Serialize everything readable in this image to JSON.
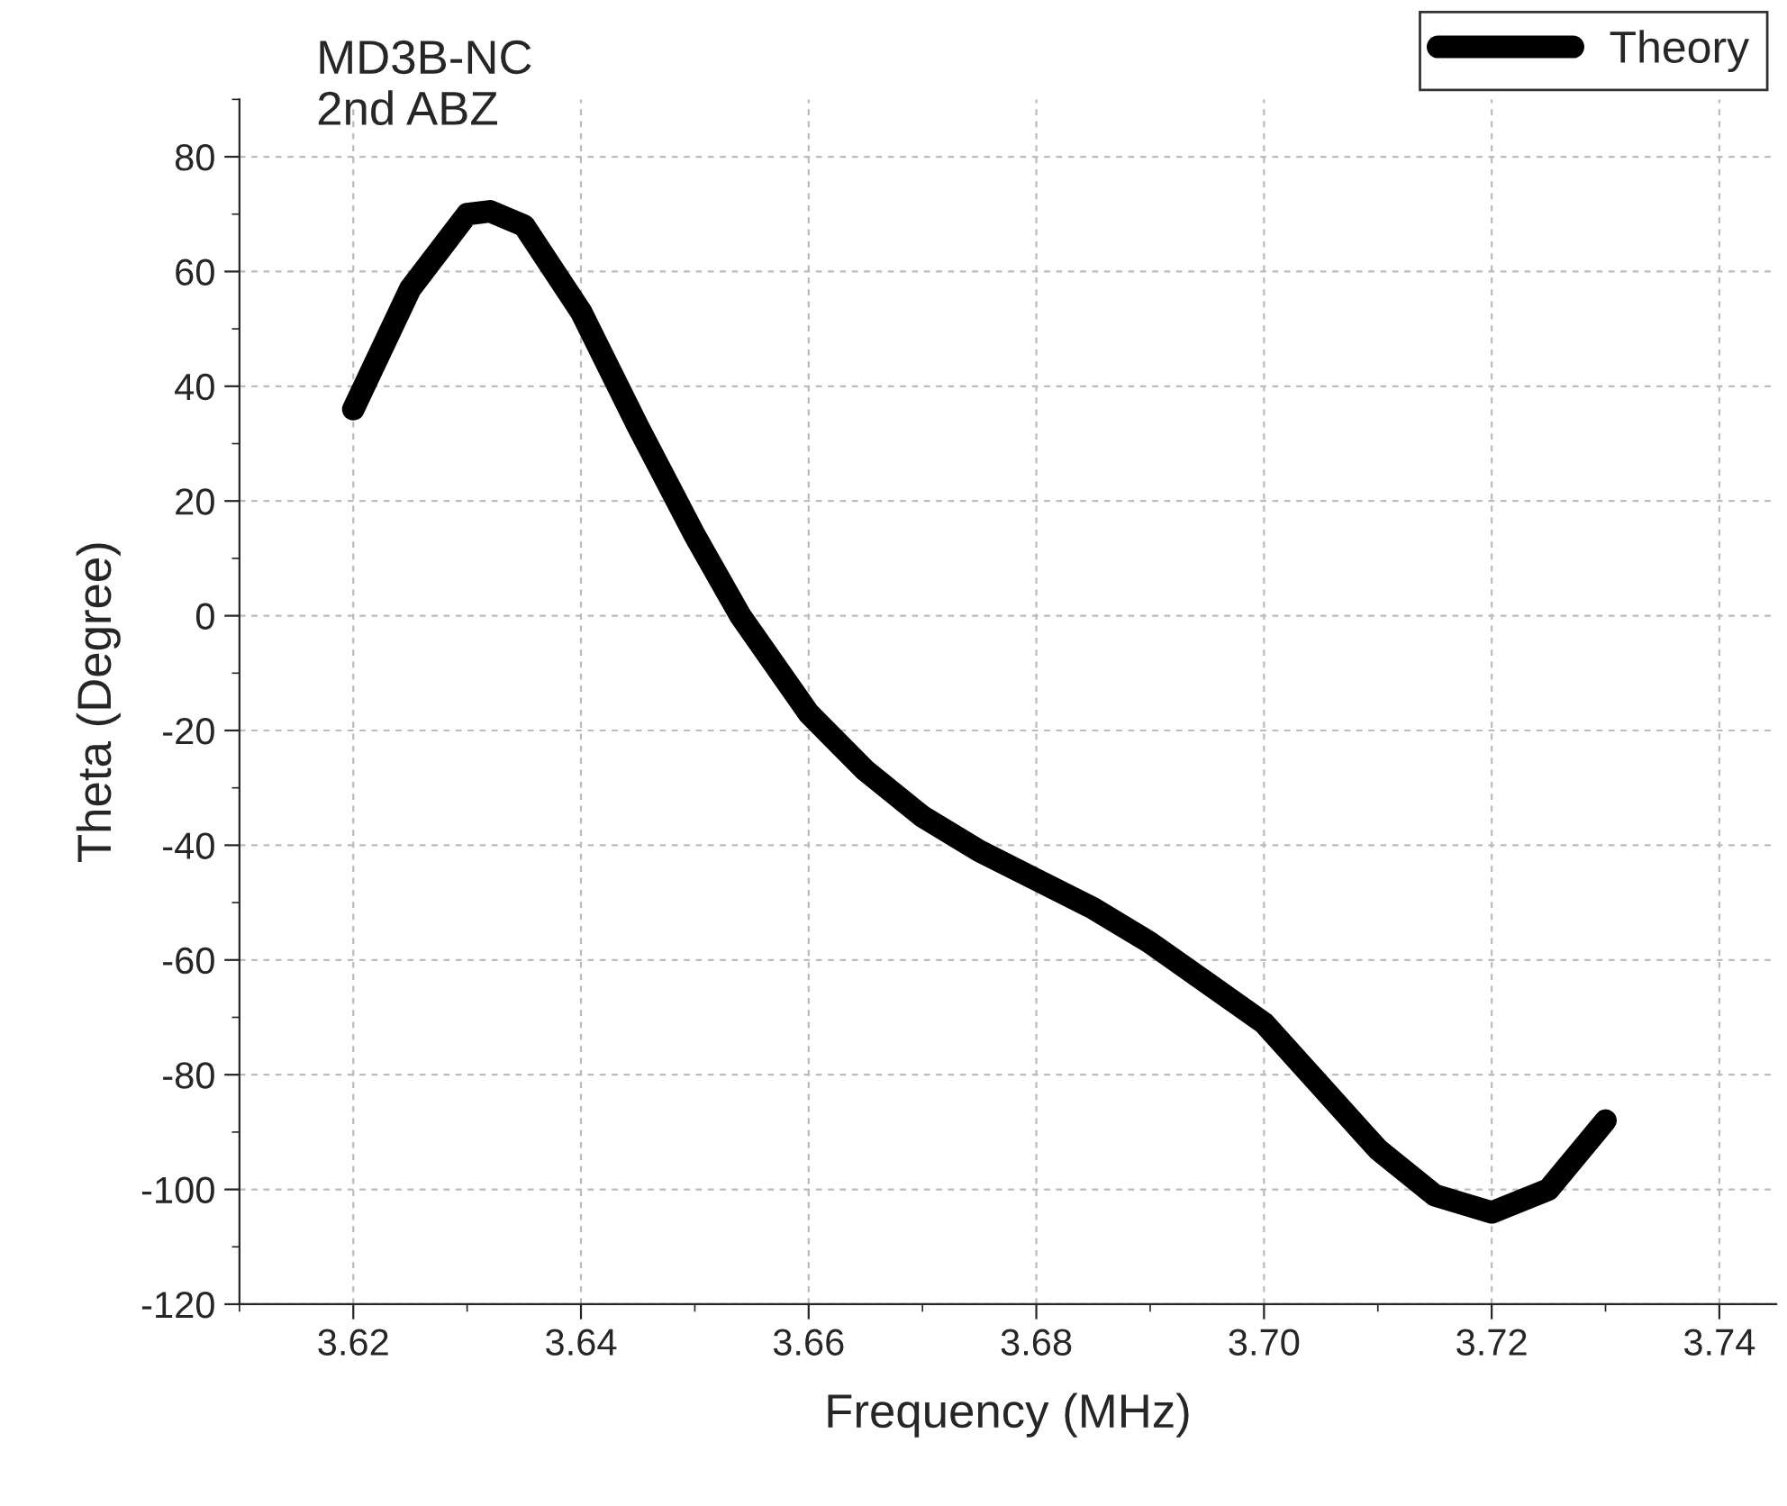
{
  "chart_data": {
    "type": "line",
    "title": "MD3B-NC\n2nd ABZ",
    "xlabel": "Frequency (MHz)",
    "ylabel": "Theta (Degree)",
    "x": [
      3.62,
      3.625,
      3.63,
      3.632,
      3.635,
      3.64,
      3.645,
      3.65,
      3.654,
      3.66,
      3.665,
      3.67,
      3.675,
      3.68,
      3.685,
      3.69,
      3.695,
      3.7,
      3.705,
      3.71,
      3.715,
      3.72,
      3.725,
      3.73
    ],
    "series": [
      {
        "name": "Theory",
        "color": "#000000",
        "values": [
          36,
          57,
          70,
          70.5,
          68,
          53,
          33,
          14,
          0,
          -17,
          -27,
          -35,
          -41,
          -46,
          -51,
          -57,
          -64,
          -71,
          -82,
          -93,
          -101,
          -104,
          -100,
          -88
        ]
      }
    ],
    "xlim": [
      3.61,
      3.745
    ],
    "ylim": [
      -120,
      90
    ],
    "xticks": [
      3.62,
      3.64,
      3.66,
      3.68,
      {
        "value": 3.7,
        "label": "3.70"
      },
      3.72,
      3.74
    ],
    "yticks": [
      -120,
      -100,
      -80,
      -60,
      -40,
      -20,
      0,
      20,
      40,
      60,
      80
    ],
    "grid": true,
    "legend": "top right",
    "line_style": "solid",
    "marker": "none"
  }
}
